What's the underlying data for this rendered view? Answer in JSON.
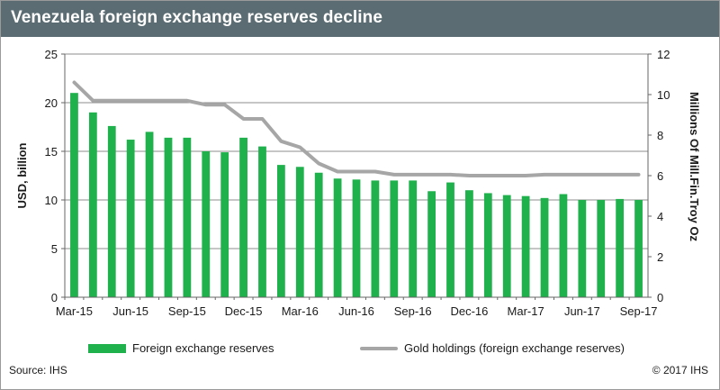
{
  "title": "Venezuela foreign exchange reserves decline",
  "source": "Source: IHS",
  "copyright": "© 2017 IHS",
  "colors": {
    "title_bar": "#5b6d73",
    "bars": "#1fb14c",
    "gold_line": "#a6a6a6",
    "gridline": "#8c8c8c"
  },
  "chart_data": {
    "type": "bar",
    "categories": [
      "Mar-15",
      "Apr-15",
      "May-15",
      "Jun-15",
      "Jul-15",
      "Aug-15",
      "Sep-15",
      "Oct-15",
      "Nov-15",
      "Dec-15",
      "Jan-16",
      "Feb-16",
      "Mar-16",
      "Apr-16",
      "May-16",
      "Jun-16",
      "Jul-16",
      "Aug-16",
      "Sep-16",
      "Oct-16",
      "Nov-16",
      "Dec-16",
      "Jan-17",
      "Feb-17",
      "Mar-17",
      "Apr-17",
      "May-17",
      "Jun-17",
      "Jul-17",
      "Aug-17",
      "Sep-17"
    ],
    "x_tick_labels": [
      "Mar-15",
      "Jun-15",
      "Sep-15",
      "Dec-15",
      "Mar-16",
      "Jun-16",
      "Sep-16",
      "Dec-16",
      "Mar-17",
      "Jun-17",
      "Sep-17"
    ],
    "series": [
      {
        "name": "Foreign exchange reserves",
        "type": "bar",
        "axis": "left",
        "values": [
          21.0,
          19.0,
          17.6,
          16.2,
          17.0,
          16.4,
          16.4,
          15.0,
          14.9,
          16.4,
          15.5,
          13.6,
          13.4,
          12.8,
          12.2,
          12.1,
          12.0,
          12.0,
          12.0,
          10.9,
          11.8,
          11.0,
          10.7,
          10.5,
          10.4,
          10.2,
          10.6,
          10.0,
          10.0,
          10.1,
          10.0
        ]
      },
      {
        "name": "Gold holdings (foreign exchange reserves)",
        "type": "line",
        "axis": "right",
        "values": [
          10.6,
          9.7,
          9.7,
          9.7,
          9.7,
          9.7,
          9.7,
          9.5,
          9.5,
          8.8,
          8.8,
          7.7,
          7.4,
          6.6,
          6.2,
          6.2,
          6.2,
          6.05,
          6.05,
          6.05,
          6.05,
          6.0,
          6.0,
          6.0,
          6.0,
          6.05,
          6.05,
          6.05,
          6.05,
          6.05,
          6.05
        ]
      }
    ],
    "ylabel": "USD, billion",
    "ylim": [
      0,
      25
    ],
    "yticks": [
      0,
      5,
      10,
      15,
      20,
      25
    ],
    "y2label": "Millions Of Mill.Fin.Troy Oz",
    "y2lim": [
      0,
      12
    ],
    "y2ticks": [
      0,
      2,
      4,
      6,
      8,
      10,
      12
    ],
    "grid": "horizontal",
    "legend_position": "bottom"
  }
}
